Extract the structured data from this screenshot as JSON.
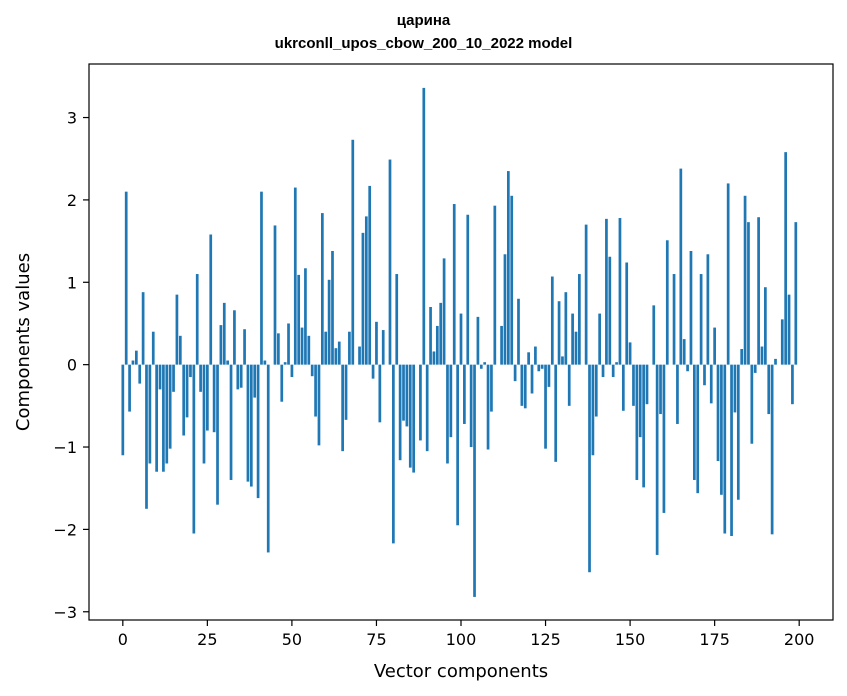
{
  "chart_data": {
    "type": "bar",
    "title": "царина",
    "subtitle": "ukrconll_upos_cbow_200_10_2022 model",
    "xlabel": "Vector components",
    "ylabel": "Components values",
    "xlim": [
      -10,
      210
    ],
    "ylim": [
      -3.1,
      3.65
    ],
    "xticks": [
      0,
      25,
      50,
      75,
      100,
      125,
      150,
      175,
      200
    ],
    "yticks": [
      -3,
      -2,
      -1,
      0,
      1,
      2,
      3
    ],
    "xtick_labels": [
      "0",
      "25",
      "50",
      "75",
      "100",
      "125",
      "150",
      "175",
      "200"
    ],
    "ytick_labels": [
      "−3",
      "−2",
      "−1",
      "0",
      "1",
      "2",
      "3"
    ],
    "grid": false,
    "bar_color": "#1f77b4",
    "values": [
      -1.1,
      2.1,
      -0.57,
      0.05,
      0.17,
      -0.23,
      0.88,
      -1.75,
      -1.2,
      0.4,
      -1.3,
      -0.3,
      -1.3,
      -1.2,
      -1.02,
      -0.33,
      0.85,
      0.35,
      -0.86,
      -0.64,
      -0.15,
      -2.05,
      1.1,
      -0.33,
      -1.2,
      -0.8,
      1.58,
      -0.82,
      -1.7,
      0.48,
      0.75,
      0.05,
      -1.4,
      0.66,
      -0.3,
      -0.28,
      0.43,
      -1.42,
      -1.48,
      -0.4,
      -1.62,
      2.1,
      0.05,
      -2.28,
      0.0,
      1.69,
      0.38,
      -0.45,
      0.03,
      0.5,
      -0.15,
      2.15,
      1.09,
      0.45,
      1.17,
      0.35,
      -0.14,
      -0.63,
      -0.98,
      1.84,
      0.4,
      1.03,
      1.38,
      0.2,
      0.28,
      -1.05,
      -0.67,
      0.4,
      2.73,
      0.0,
      0.22,
      1.6,
      1.8,
      2.17,
      -0.17,
      0.52,
      -0.7,
      0.42,
      0.0,
      2.49,
      -2.17,
      1.1,
      -1.16,
      -0.68,
      -0.75,
      -1.25,
      -1.31,
      0.0,
      -0.92,
      3.36,
      -1.05,
      0.7,
      0.16,
      0.47,
      0.75,
      1.29,
      -1.2,
      -0.88,
      1.95,
      -1.95,
      0.62,
      -0.72,
      1.82,
      -1.0,
      -2.82,
      0.58,
      -0.05,
      0.03,
      -1.03,
      -0.57,
      1.93,
      0.0,
      0.47,
      1.34,
      2.35,
      2.05,
      -0.2,
      0.8,
      -0.5,
      -0.53,
      0.15,
      -0.35,
      0.22,
      -0.08,
      -0.05,
      -1.02,
      -0.27,
      1.07,
      -1.18,
      0.77,
      0.1,
      0.88,
      -0.5,
      0.62,
      0.4,
      1.1,
      0.0,
      1.7,
      -2.52,
      -1.1,
      -0.63,
      0.62,
      -0.15,
      1.77,
      1.31,
      -0.15,
      0.03,
      1.78,
      -0.56,
      1.24,
      0.27,
      -0.5,
      -1.4,
      -0.88,
      -1.49,
      -0.48,
      0.0,
      0.72,
      -2.31,
      -0.6,
      -1.8,
      1.51,
      0.0,
      1.1,
      -0.72,
      2.38,
      0.31,
      -0.08,
      1.38,
      -1.4,
      -1.56,
      1.1,
      -0.25,
      1.34,
      -0.47,
      0.45,
      -1.17,
      -1.58,
      -2.05,
      2.2,
      -2.08,
      -0.58,
      -1.64,
      0.19,
      2.05,
      1.73,
      -0.96,
      -0.1,
      1.79,
      0.22,
      0.94,
      -0.6,
      -2.06,
      0.07,
      0.0,
      0.55,
      2.58,
      0.85,
      -0.48,
      1.73
    ]
  }
}
